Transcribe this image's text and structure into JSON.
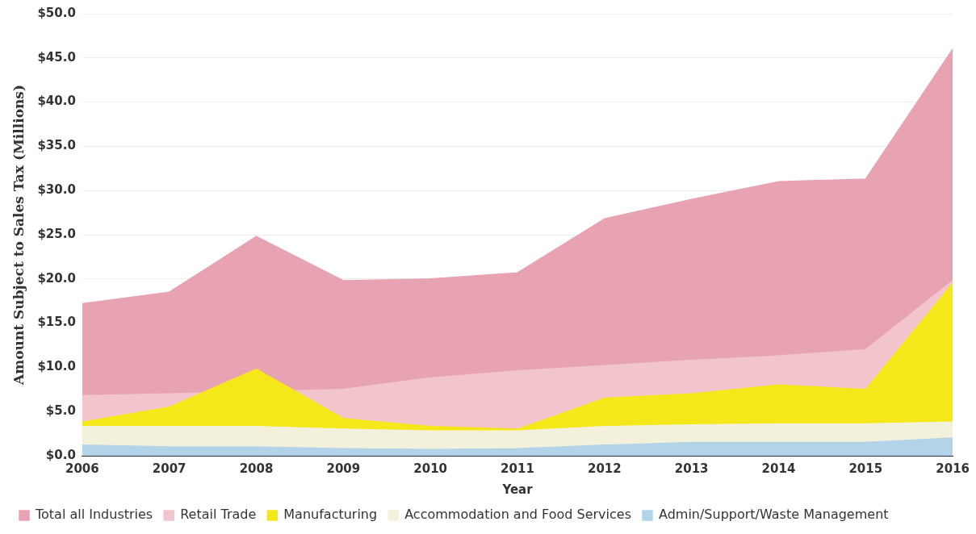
{
  "chart_data": {
    "type": "area",
    "xlabel": "Year",
    "ylabel": "Amount Subject to Sales Tax (Millions)",
    "categories": [
      "2006",
      "2007",
      "2008",
      "2009",
      "2010",
      "2011",
      "2012",
      "2013",
      "2014",
      "2015",
      "2016"
    ],
    "series": [
      {
        "name": "Total all Industries",
        "color": "#e8a3b2",
        "values": [
          17.2,
          18.5,
          24.8,
          19.8,
          20.0,
          20.7,
          26.8,
          29.0,
          31.0,
          31.3,
          46.0
        ]
      },
      {
        "name": "Retail Trade",
        "color": "#f2c4cc",
        "values": [
          6.8,
          7.0,
          null,
          7.5,
          8.8,
          9.6,
          10.2,
          10.8,
          11.3,
          12.0,
          19.8
        ]
      },
      {
        "name": "Manufacturing",
        "color": "#f5e81a",
        "values": [
          3.8,
          5.5,
          9.8,
          4.2,
          3.3,
          3.0,
          6.5,
          7.0,
          8.0,
          7.5,
          19.5
        ]
      },
      {
        "name": "Accommodation and Food Services",
        "color": "#f3f1dc",
        "values": [
          3.3,
          3.3,
          3.3,
          3.0,
          2.8,
          2.8,
          3.3,
          3.5,
          3.6,
          3.6,
          3.8
        ]
      },
      {
        "name": "Admin/Support/Waste Management",
        "color": "#b3d4e8",
        "values": [
          1.2,
          1.0,
          1.0,
          0.8,
          0.7,
          0.8,
          1.2,
          1.5,
          1.5,
          1.5,
          2.0
        ]
      }
    ],
    "ylim": [
      0,
      50
    ],
    "yticks": [
      {
        "value": 0,
        "label": "$0.0"
      },
      {
        "value": 5,
        "label": "$5.0"
      },
      {
        "value": 10,
        "label": "$10.0"
      },
      {
        "value": 15,
        "label": "$15.0"
      },
      {
        "value": 20,
        "label": "$20.0"
      },
      {
        "value": 25,
        "label": "$25.0"
      },
      {
        "value": 30,
        "label": "$30.0"
      },
      {
        "value": 35,
        "label": "$35.0"
      },
      {
        "value": 40,
        "label": "$40.0"
      },
      {
        "value": 45,
        "label": "$45.0"
      },
      {
        "value": 50,
        "label": "$50.0"
      }
    ],
    "grid": "y",
    "legend": "bottom"
  }
}
